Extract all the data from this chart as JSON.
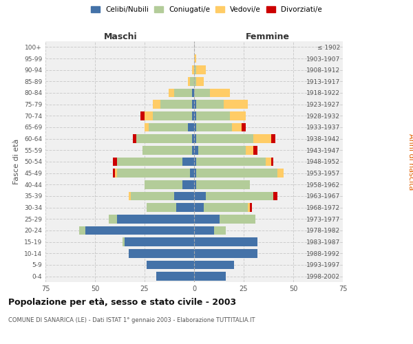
{
  "age_groups": [
    "100+",
    "95-99",
    "90-94",
    "85-89",
    "80-84",
    "75-79",
    "70-74",
    "65-69",
    "60-64",
    "55-59",
    "50-54",
    "45-49",
    "40-44",
    "35-39",
    "30-34",
    "25-29",
    "20-24",
    "15-19",
    "10-14",
    "5-9",
    "0-4"
  ],
  "birth_years": [
    "≤ 1902",
    "1903-1907",
    "1908-1912",
    "1913-1917",
    "1918-1922",
    "1923-1927",
    "1928-1932",
    "1933-1937",
    "1938-1942",
    "1943-1947",
    "1948-1952",
    "1953-1957",
    "1958-1962",
    "1963-1967",
    "1968-1972",
    "1973-1977",
    "1978-1982",
    "1983-1987",
    "1988-1992",
    "1993-1997",
    "1998-2002"
  ],
  "males": {
    "celibi": [
      0,
      0,
      0,
      0,
      1,
      1,
      1,
      3,
      1,
      1,
      6,
      2,
      6,
      10,
      9,
      39,
      55,
      35,
      33,
      24,
      19
    ],
    "coniugati": [
      0,
      0,
      0,
      2,
      9,
      16,
      20,
      20,
      28,
      25,
      33,
      37,
      19,
      22,
      15,
      4,
      3,
      1,
      0,
      0,
      0
    ],
    "vedovi": [
      0,
      0,
      1,
      1,
      3,
      4,
      4,
      2,
      0,
      0,
      0,
      1,
      0,
      1,
      0,
      0,
      0,
      0,
      0,
      0,
      0
    ],
    "divorziati": [
      0,
      0,
      0,
      0,
      0,
      0,
      2,
      0,
      2,
      0,
      2,
      1,
      0,
      0,
      0,
      0,
      0,
      0,
      0,
      0,
      0
    ]
  },
  "females": {
    "nubili": [
      0,
      0,
      0,
      0,
      0,
      1,
      1,
      1,
      1,
      2,
      1,
      1,
      1,
      6,
      5,
      13,
      10,
      32,
      32,
      20,
      16
    ],
    "coniugate": [
      0,
      0,
      1,
      1,
      8,
      14,
      17,
      18,
      29,
      24,
      35,
      41,
      27,
      34,
      22,
      18,
      6,
      0,
      0,
      0,
      0
    ],
    "vedove": [
      0,
      1,
      5,
      4,
      10,
      12,
      8,
      5,
      9,
      4,
      3,
      3,
      0,
      0,
      1,
      0,
      0,
      0,
      0,
      0,
      0
    ],
    "divorziate": [
      0,
      0,
      0,
      0,
      0,
      0,
      0,
      2,
      2,
      2,
      1,
      0,
      0,
      2,
      1,
      0,
      0,
      0,
      0,
      0,
      0
    ]
  },
  "colors": {
    "celibi": "#4472a8",
    "coniugati": "#b3cc99",
    "vedovi": "#ffcc66",
    "divorziati": "#cc0000"
  },
  "title": "Popolazione per età, sesso e stato civile - 2003",
  "subtitle": "COMUNE DI SANARICA (LE) - Dati ISTAT 1° gennaio 2003 - Elaborazione TUTTITALIA.IT",
  "xlabel_left": "Maschi",
  "xlabel_right": "Femmine",
  "ylabel_left": "Fasce di età",
  "ylabel_right": "Anni di nascita",
  "xlim": 75,
  "bg_color": "#ffffff",
  "plot_bg_color": "#f0f0f0",
  "legend_labels": [
    "Celibi/Nubili",
    "Coniugati/e",
    "Vedovi/e",
    "Divorziati/e"
  ]
}
